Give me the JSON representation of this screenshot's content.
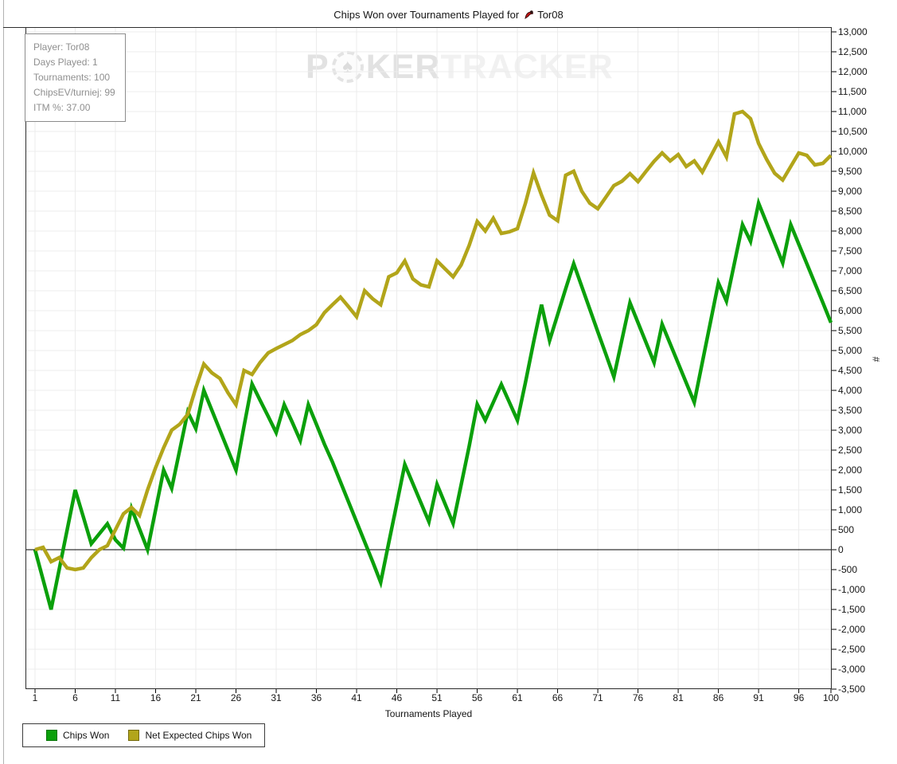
{
  "title": {
    "text": "Chips Won over Tournaments Played for",
    "player": "Tor08",
    "icon": "player-icon",
    "icon_color": "#cc1111"
  },
  "info_box": {
    "lines": [
      "Player: Tor08",
      "Days Played: 1",
      "Tournaments: 100",
      "ChipsEV/turniej: 99",
      "ITM %: 37.00"
    ]
  },
  "watermark": {
    "part1": "P",
    "chip_icon": "poker-chip-spade-icon",
    "chip_glyph": "♠",
    "part2": "KER",
    "part3": "TRACKER"
  },
  "legend": [
    {
      "label": "Chips Won",
      "color": "#0ba00b",
      "border": "#067406"
    },
    {
      "label": "Net Expected Chips Won",
      "color": "#b2a51a",
      "border": "#746a0e"
    }
  ],
  "chart_data": {
    "type": "line",
    "title": "Chips Won over Tournaments Played for Tor08",
    "xlabel": "Tournaments Played",
    "ylabel": "#",
    "xlim": [
      1,
      100
    ],
    "ylim": [
      -3500,
      13000
    ],
    "y_step": 500,
    "x_ticks": [
      1,
      6,
      11,
      16,
      21,
      26,
      31,
      36,
      41,
      46,
      51,
      56,
      61,
      66,
      71,
      76,
      81,
      86,
      91,
      96,
      100
    ],
    "grid": true,
    "grid_color": "#ececec",
    "zero_line": true,
    "legend_position": "bottom-left",
    "series": [
      {
        "name": "Chips Won",
        "color": "#0ba00b",
        "values": [
          0,
          -750,
          -1500,
          -500,
          500,
          1500,
          830,
          150,
          400,
          650,
          250,
          40,
          1040,
          520,
          0,
          1000,
          2000,
          1540,
          2500,
          3460,
          3040,
          4000,
          3500,
          3000,
          2500,
          2000,
          3100,
          4160,
          3750,
          3350,
          2940,
          3640,
          3200,
          2740,
          3640,
          3150,
          2650,
          2200,
          1700,
          1200,
          700,
          200,
          -300,
          -820,
          170,
          1150,
          2140,
          1660,
          1180,
          700,
          1640,
          1150,
          660,
          1630,
          2600,
          3650,
          3250,
          3700,
          4150,
          3700,
          3250,
          4200,
          5200,
          6150,
          5250,
          5900,
          6550,
          7180,
          6610,
          6040,
          5470,
          4910,
          4340,
          5270,
          6200,
          5700,
          5200,
          4700,
          5660,
          5170,
          4680,
          4190,
          3700,
          4700,
          5700,
          6700,
          6240,
          7200,
          8160,
          7740,
          8700,
          8200,
          7700,
          7200,
          8160,
          7670,
          7180,
          6690,
          6200,
          5700
        ]
      },
      {
        "name": "Net Expected Chips Won",
        "color": "#b2a51a",
        "values": [
          0,
          60,
          -300,
          -200,
          -460,
          -500,
          -460,
          -200,
          0,
          100,
          500,
          900,
          1060,
          860,
          1500,
          2060,
          2560,
          3000,
          3150,
          3400,
          4060,
          4660,
          4440,
          4300,
          3940,
          3640,
          4500,
          4400,
          4700,
          4940,
          5050,
          5150,
          5250,
          5400,
          5500,
          5650,
          5950,
          6150,
          6340,
          6100,
          5850,
          6500,
          6300,
          6150,
          6850,
          6950,
          7250,
          6800,
          6650,
          6600,
          7250,
          7050,
          6850,
          7150,
          7640,
          8240,
          8000,
          8320,
          7940,
          7980,
          8060,
          8700,
          9460,
          8900,
          8400,
          8260,
          9400,
          9500,
          9000,
          8700,
          8560,
          8850,
          9140,
          9250,
          9440,
          9240,
          9500,
          9750,
          9960,
          9760,
          9920,
          9620,
          9760,
          9480,
          9860,
          10240,
          9860,
          10940,
          11000,
          10820,
          10200,
          9800,
          9450,
          9280,
          9620,
          9960,
          9900,
          9660,
          9700,
          9900
        ]
      }
    ]
  }
}
